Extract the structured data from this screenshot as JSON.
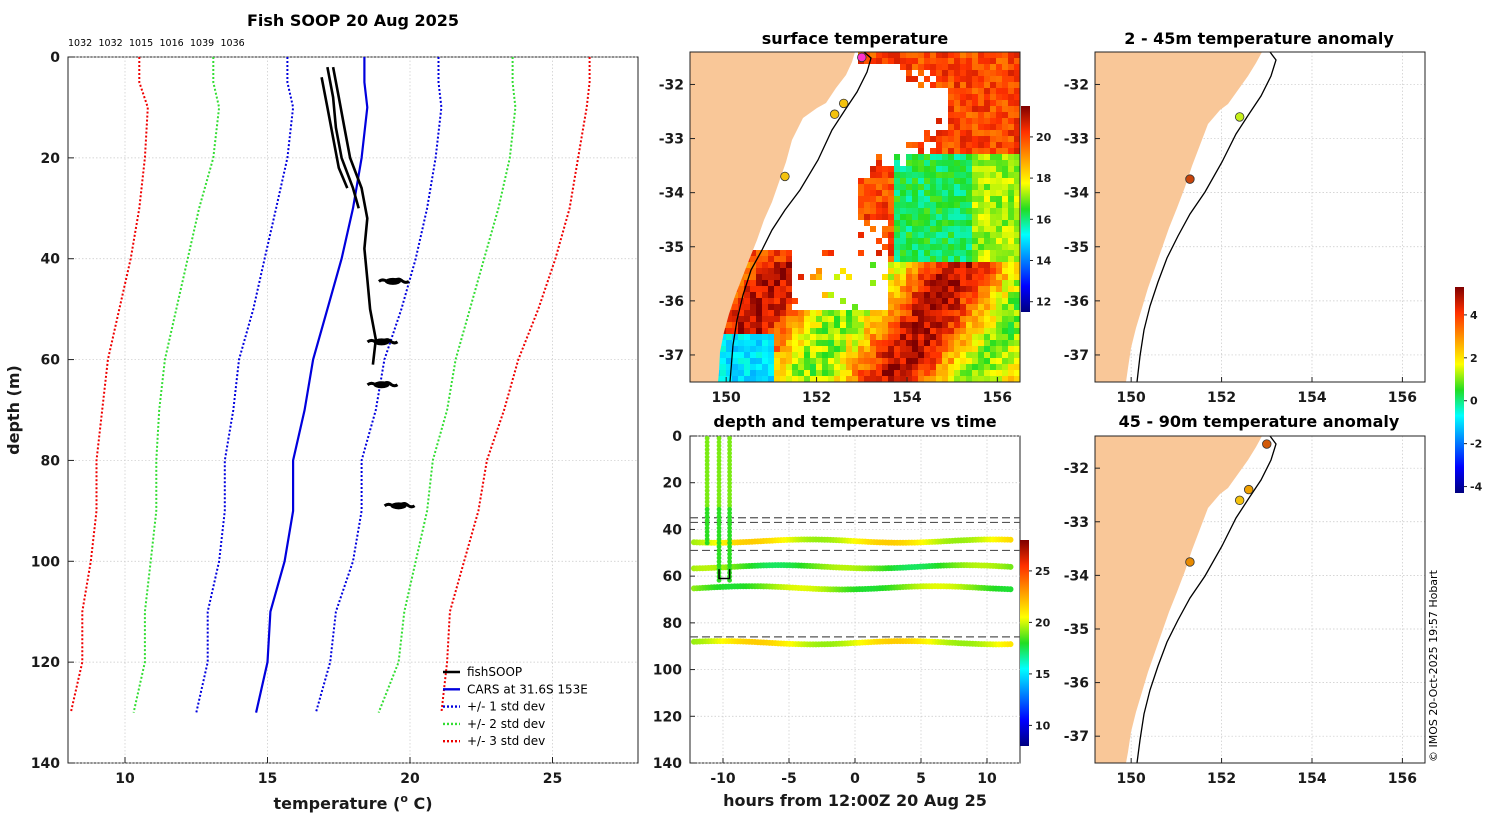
{
  "figure": {
    "credit": "© IMOS 20-Oct-2025 19:57 Hobart"
  },
  "colors": {
    "fishsoop": "#000000",
    "cars": "#0000dd",
    "std1": "#0000dd",
    "std2": "#33dd33",
    "std3": "#ee0000",
    "land": "#f9c798"
  },
  "chart_data": [
    {
      "id": "profile",
      "type": "line",
      "title": "Fish SOOP 20 Aug 2025",
      "xlabel": "temperature (",
      "xlabel_sup": "o",
      "xlabel_unit": " C)",
      "ylabel": "depth (m)",
      "xlim": [
        8,
        28
      ],
      "ylim": [
        0,
        140
      ],
      "xticks": [
        10,
        15,
        20,
        25
      ],
      "yticks": [
        0,
        20,
        40,
        60,
        80,
        100,
        120,
        140
      ],
      "grid": true,
      "sample_counts": [
        "1032",
        "1032",
        "1015",
        "1016",
        "1039",
        "1036"
      ],
      "legend": [
        {
          "label": "fishSOOP",
          "color": "#000000",
          "style": "solid"
        },
        {
          "label": "CARS at 31.6S 153E",
          "color": "#0000dd",
          "style": "solid"
        },
        {
          "label": "+/- 1 std dev",
          "color": "#0000dd",
          "style": "dotted"
        },
        {
          "label": "+/- 2 std dev",
          "color": "#33dd33",
          "style": "dotted"
        },
        {
          "label": "+/- 3 std dev",
          "color": "#ee0000",
          "style": "dotted"
        }
      ],
      "legend_position": "bottom-right",
      "series": [
        {
          "name": "CARS at 31.6S 153E",
          "depth": [
            0,
            5,
            10,
            20,
            30,
            40,
            50,
            60,
            70,
            80,
            90,
            100,
            110,
            120,
            130
          ],
          "temp": [
            18.4,
            18.4,
            18.5,
            18.3,
            18.0,
            17.6,
            17.1,
            16.6,
            16.3,
            15.9,
            15.9,
            15.6,
            15.1,
            15.0,
            14.6
          ]
        },
        {
          "name": "std1_low",
          "depth": [
            0,
            5,
            10,
            20,
            30,
            40,
            50,
            60,
            70,
            80,
            90,
            100,
            110,
            120,
            130
          ],
          "temp": [
            15.7,
            15.7,
            15.9,
            15.7,
            15.3,
            14.9,
            14.5,
            14.0,
            13.8,
            13.5,
            13.5,
            13.3,
            12.9,
            12.9,
            12.5
          ]
        },
        {
          "name": "std1_high",
          "depth": [
            0,
            5,
            10,
            20,
            30,
            40,
            50,
            60,
            70,
            80,
            90,
            100,
            110,
            120,
            130
          ],
          "temp": [
            21.0,
            21.0,
            21.1,
            20.9,
            20.6,
            20.2,
            19.7,
            19.1,
            18.8,
            18.3,
            18.3,
            18.0,
            17.4,
            17.2,
            16.7
          ]
        },
        {
          "name": "std2_low",
          "depth": [
            0,
            5,
            10,
            20,
            30,
            40,
            50,
            60,
            70,
            80,
            90,
            100,
            110,
            120,
            130
          ],
          "temp": [
            13.1,
            13.1,
            13.3,
            13.1,
            12.6,
            12.2,
            11.8,
            11.4,
            11.2,
            11.1,
            11.1,
            10.9,
            10.7,
            10.7,
            10.3
          ]
        },
        {
          "name": "std2_high",
          "depth": [
            0,
            5,
            10,
            20,
            30,
            40,
            50,
            60,
            70,
            80,
            90,
            100,
            110,
            120,
            130
          ],
          "temp": [
            23.6,
            23.6,
            23.7,
            23.5,
            23.1,
            22.6,
            22.1,
            21.6,
            21.3,
            20.8,
            20.6,
            20.2,
            19.8,
            19.6,
            18.9
          ]
        },
        {
          "name": "std3_low",
          "depth": [
            0,
            5,
            10,
            20,
            30,
            40,
            50,
            60,
            70,
            80,
            90,
            100,
            110,
            120,
            130
          ],
          "temp": [
            10.5,
            10.5,
            10.8,
            10.7,
            10.5,
            10.2,
            9.8,
            9.4,
            9.2,
            9.0,
            9.0,
            8.8,
            8.5,
            8.5,
            8.1
          ]
        },
        {
          "name": "std3_high",
          "depth": [
            0,
            5,
            10,
            20,
            30,
            40,
            50,
            60,
            70,
            80,
            90,
            100,
            110,
            120,
            130
          ],
          "temp": [
            26.3,
            26.3,
            26.2,
            25.9,
            25.6,
            25.1,
            24.5,
            23.8,
            23.3,
            22.7,
            22.4,
            21.9,
            21.4,
            21.3,
            21.1
          ]
        },
        {
          "name": "fishSOOP cast 1",
          "depth": [
            2,
            8,
            14,
            20,
            26,
            32,
            38,
            44,
            50,
            56,
            61
          ],
          "temp": [
            17.3,
            17.5,
            17.7,
            17.9,
            18.3,
            18.5,
            18.4,
            18.5,
            18.6,
            18.8,
            18.7
          ]
        },
        {
          "name": "fishSOOP cast 2",
          "depth": [
            2,
            8,
            14,
            20,
            26,
            30
          ],
          "temp": [
            17.1,
            17.3,
            17.4,
            17.6,
            18.0,
            18.2
          ]
        },
        {
          "name": "fishSOOP cast 3",
          "depth": [
            4,
            10,
            16,
            22,
            26
          ],
          "temp": [
            16.9,
            17.1,
            17.3,
            17.5,
            17.8
          ]
        }
      ],
      "clusters": [
        {
          "depth": 44.5,
          "temp": 19.4
        },
        {
          "depth": 56.5,
          "temp": 19.0
        },
        {
          "depth": 65.0,
          "temp": 19.0
        },
        {
          "depth": 89.0,
          "temp": 19.6
        }
      ]
    },
    {
      "id": "sst-map",
      "type": "heatmap",
      "title": "surface temperature",
      "xlim": [
        149.2,
        156.5
      ],
      "ylim": [
        -37.5,
        -31.4
      ],
      "xticks": [
        150,
        152,
        154,
        156
      ],
      "yticks": [
        -32,
        -33,
        -34,
        -35,
        -36,
        -37
      ],
      "colorbar": {
        "ticks": [
          12,
          14,
          16,
          18,
          20
        ],
        "range": [
          11.5,
          21.5
        ]
      },
      "stations": [
        {
          "lon": 153.0,
          "lat": -31.5,
          "color": "#ff33cc"
        },
        {
          "lon": 152.6,
          "lat": -32.35,
          "color": "#f4c20d"
        },
        {
          "lon": 152.4,
          "lat": -32.55,
          "color": "#f4c20d"
        },
        {
          "lon": 151.3,
          "lat": -33.7,
          "color": "#f4c20d"
        }
      ]
    },
    {
      "id": "depth-time",
      "type": "scatter",
      "title": "depth and temperature vs time",
      "xlabel": "hours from 12:00Z 20 Aug 25",
      "xlim": [
        -12.5,
        12.5
      ],
      "ylim": [
        0,
        140
      ],
      "xticks": [
        -10,
        -5,
        0,
        5,
        10
      ],
      "yticks": [
        0,
        20,
        40,
        60,
        80,
        100,
        120,
        140
      ],
      "colorbar": {
        "ticks": [
          10,
          15,
          20,
          25
        ],
        "range": [
          8,
          28
        ]
      },
      "dashed_depths": [
        35,
        37,
        49,
        86
      ],
      "tracks": [
        {
          "depth": 45,
          "temp": 20.5
        },
        {
          "depth": 56,
          "temp": 18.5
        },
        {
          "depth": 65,
          "temp": 19.0
        },
        {
          "depth": 88.5,
          "temp": 20.5
        }
      ],
      "casts": [
        {
          "hour": -11.2,
          "temp": 18.5
        },
        {
          "hour": -10.3,
          "temp": 18.5
        },
        {
          "hour": -9.5,
          "temp": 18.5
        }
      ]
    },
    {
      "id": "anom-2-45",
      "type": "scatter",
      "title": "2 - 45m temperature anomaly",
      "xlim": [
        149.2,
        156.5
      ],
      "ylim": [
        -37.5,
        -31.4
      ],
      "xticks": [
        150,
        152,
        154,
        156
      ],
      "yticks": [
        -32,
        -33,
        -34,
        -35,
        -36,
        -37
      ],
      "stations": [
        {
          "lon": 152.4,
          "lat": -32.6,
          "color": "#c6f01a"
        },
        {
          "lon": 151.3,
          "lat": -33.75,
          "color": "#c8440a"
        }
      ]
    },
    {
      "id": "anom-45-90",
      "type": "scatter",
      "title": "45 - 90m temperature anomaly",
      "xlim": [
        149.2,
        156.5
      ],
      "ylim": [
        -37.5,
        -31.4
      ],
      "xticks": [
        150,
        152,
        154,
        156
      ],
      "yticks": [
        -32,
        -33,
        -34,
        -35,
        -36,
        -37
      ],
      "stations": [
        {
          "lon": 153.0,
          "lat": -31.55,
          "color": "#d25a0a"
        },
        {
          "lon": 152.6,
          "lat": -32.4,
          "color": "#f0a000"
        },
        {
          "lon": 152.4,
          "lat": -32.6,
          "color": "#f4c20d"
        },
        {
          "lon": 151.3,
          "lat": -33.75,
          "color": "#e88a00"
        }
      ]
    },
    {
      "id": "anom-colorbar",
      "type": "heatmap",
      "title": "",
      "colorbar": {
        "ticks": [
          4,
          2,
          0,
          -2,
          -4
        ],
        "range": [
          -4.3,
          5.3
        ]
      }
    }
  ]
}
